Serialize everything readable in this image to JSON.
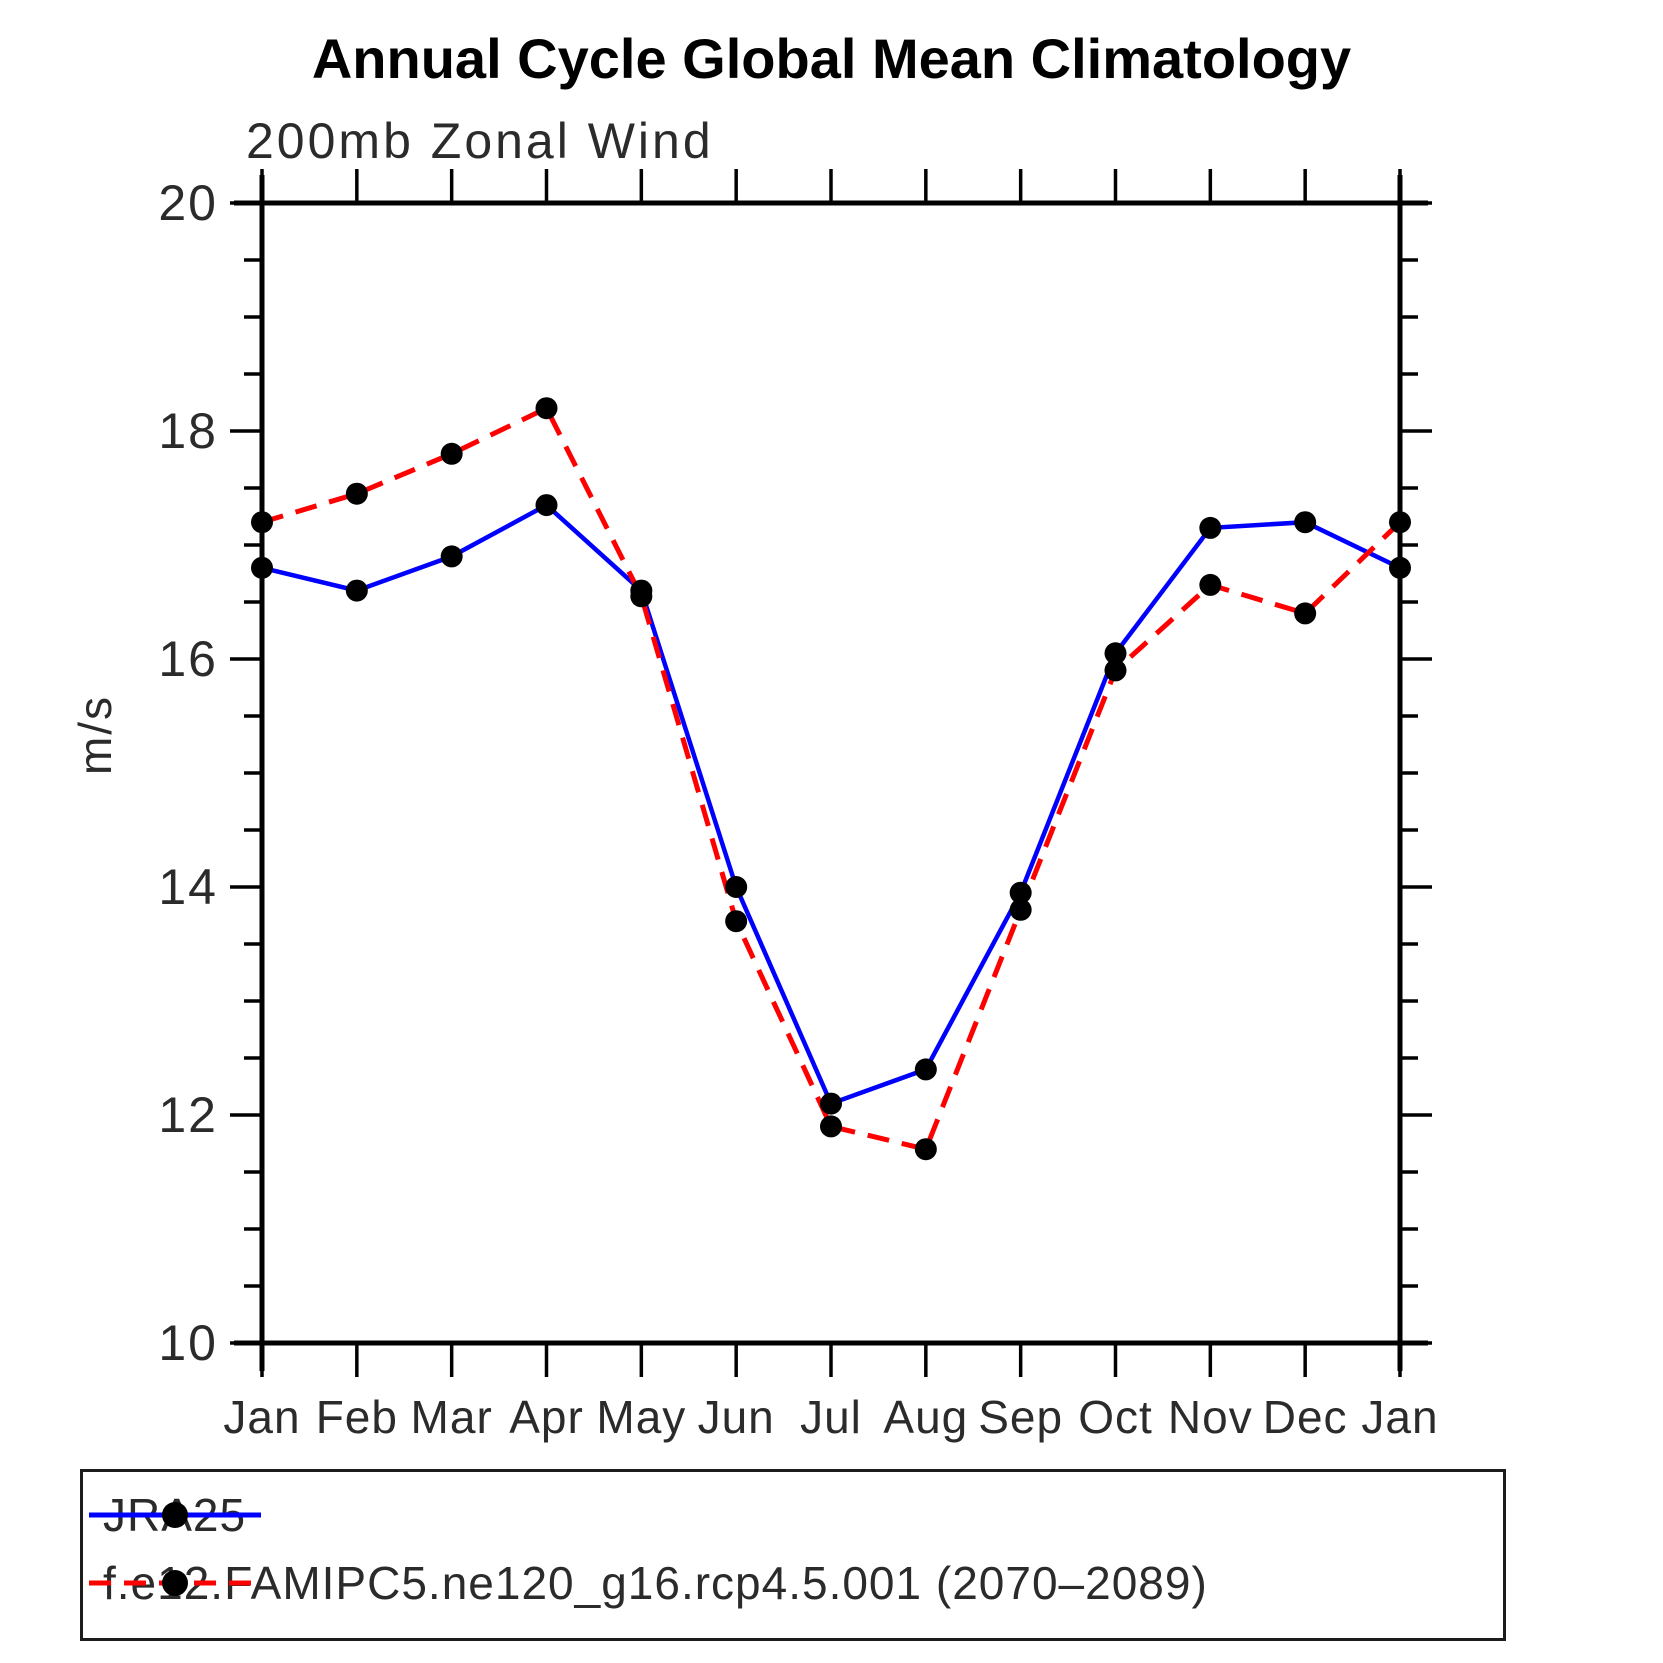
{
  "title": "Annual Cycle Global Mean Climatology",
  "chart_data": {
    "type": "line",
    "title": "Annual Cycle Global Mean Climatology",
    "subtitle": "200mb Zonal Wind",
    "ylabel": "m/s",
    "xlabel": "",
    "categories": [
      "Jan",
      "Feb",
      "Mar",
      "Apr",
      "May",
      "Jun",
      "Jul",
      "Aug",
      "Sep",
      "Oct",
      "Nov",
      "Dec",
      "Jan"
    ],
    "ylim": [
      10,
      20
    ],
    "y_major_ticks": [
      10,
      12,
      14,
      16,
      18,
      20
    ],
    "y_minor_step": 0.5,
    "grid": false,
    "legend_position": "bottom-left-box",
    "axis_color": "#000000",
    "marker_color": "#000000",
    "series": [
      {
        "name": "JRA25",
        "color": "#0000ff",
        "dash": "solid",
        "marker": "circle",
        "values": [
          16.8,
          16.6,
          16.9,
          17.35,
          16.6,
          14.0,
          12.1,
          12.4,
          13.95,
          16.05,
          17.15,
          17.2,
          16.8
        ]
      },
      {
        "name": "f.e12.FAMIPC5.ne120_g16.rcp4.5.001 (2070–2089)",
        "color": "#ff0000",
        "dash": "dashed",
        "marker": "circle",
        "values": [
          17.2,
          17.45,
          17.8,
          18.2,
          16.55,
          13.7,
          11.9,
          11.7,
          13.8,
          15.9,
          16.65,
          16.4,
          17.2
        ]
      }
    ]
  }
}
